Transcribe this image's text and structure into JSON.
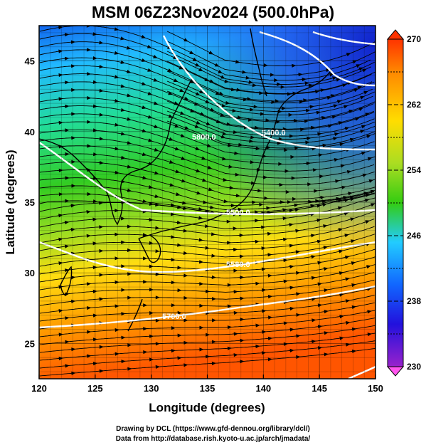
{
  "title": "MSM 06Z23Nov2024 (500.0hPa)",
  "xlabel": "Longitude (degrees)",
  "ylabel": "Latitude  (degrees)",
  "xticks": [
    "120",
    "125",
    "130",
    "135",
    "140",
    "145",
    "150"
  ],
  "yticks": [
    "25",
    "30",
    "35",
    "40",
    "45"
  ],
  "colorbar": {
    "labels": [
      "270",
      "262",
      "254",
      "246",
      "238",
      "230"
    ],
    "min": 230,
    "max": 270
  },
  "contours": [
    "5400.0",
    "5500.0",
    "5580.0",
    "5700.0",
    "5800.0"
  ],
  "footer": {
    "line1": "Drawing by DCL (https://www.gfd-dennou.org/library/dcl/)",
    "line2": "Data from http://database.rish.kyoto-u.ac.jp/arch/jmadata/"
  },
  "map_data": {
    "lon_range": [
      120,
      150
    ],
    "lat_range": [
      22.5,
      47.5
    ],
    "field": "temperature",
    "units": "K",
    "vector_field": "wind",
    "coastlines": true,
    "colormap": [
      "#ff55ee",
      "#9922cc",
      "#2211dd",
      "#1166ff",
      "#22ccff",
      "#22dd88",
      "#33cc11",
      "#aadd22",
      "#ffdd00",
      "#ff8800",
      "#ff3300"
    ]
  }
}
